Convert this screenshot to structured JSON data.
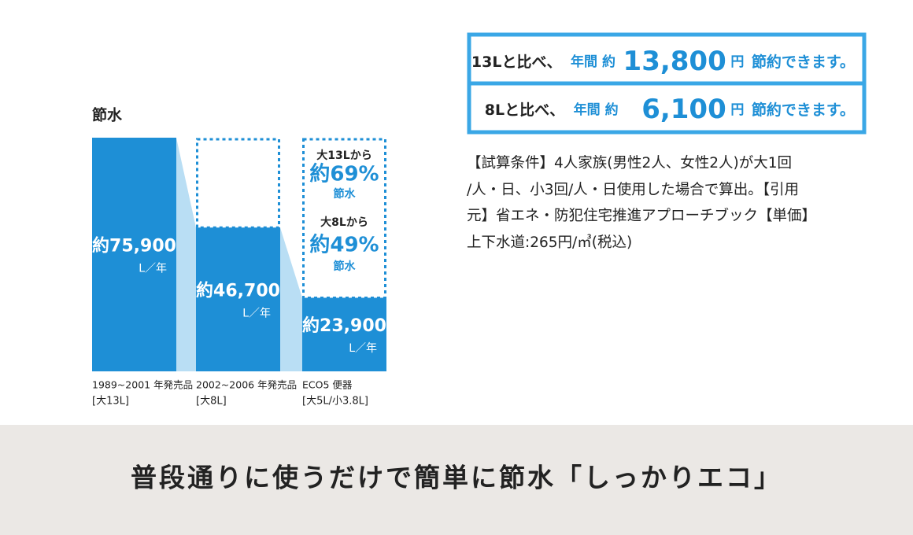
{
  "chart_data": {
    "type": "bar",
    "title": "節水",
    "categories": [
      "1989~2001 年発売品",
      "2002~2006 年発売品",
      "ECO5 便器"
    ],
    "category_notes": [
      "[大13L]",
      "[大8L]",
      "[大5L/小3.8L]"
    ],
    "values": [
      75900,
      46700,
      23900
    ],
    "value_labels": [
      "約75,900",
      "約46,700",
      "約23,900"
    ],
    "unit_label": "L／年",
    "color": "#1e8fd6",
    "ylim": [
      0,
      75900
    ],
    "annotations": [
      {
        "from": "大13Lから",
        "value": 69,
        "value_label": "約69%",
        "suffix": "節水"
      },
      {
        "from": "大8Lから",
        "value": 49,
        "value_label": "約49%",
        "suffix": "節水"
      }
    ]
  },
  "savings": [
    {
      "lead": "13Lと比べ、",
      "mid": "年間 約",
      "amount": "13,800",
      "unit": "円",
      "tail": "節約できます。"
    },
    {
      "lead": "8Lと比べ、",
      "mid": "年間 約",
      "amount": "6,100",
      "unit": "円",
      "tail": "節約できます。"
    }
  ],
  "conditions": [
    "【試算条件】4人家族(男性2人、女性2人)が大1回",
    "/人・日、小3回/人・日使用した場合で算出。【引用",
    "元】省エネ・防犯住宅推進アプローチブック【単価】",
    "上下水道:265円/㎥(税込)"
  ],
  "banner": "普段通りに使うだけで簡単に節水「しっかりエコ」"
}
